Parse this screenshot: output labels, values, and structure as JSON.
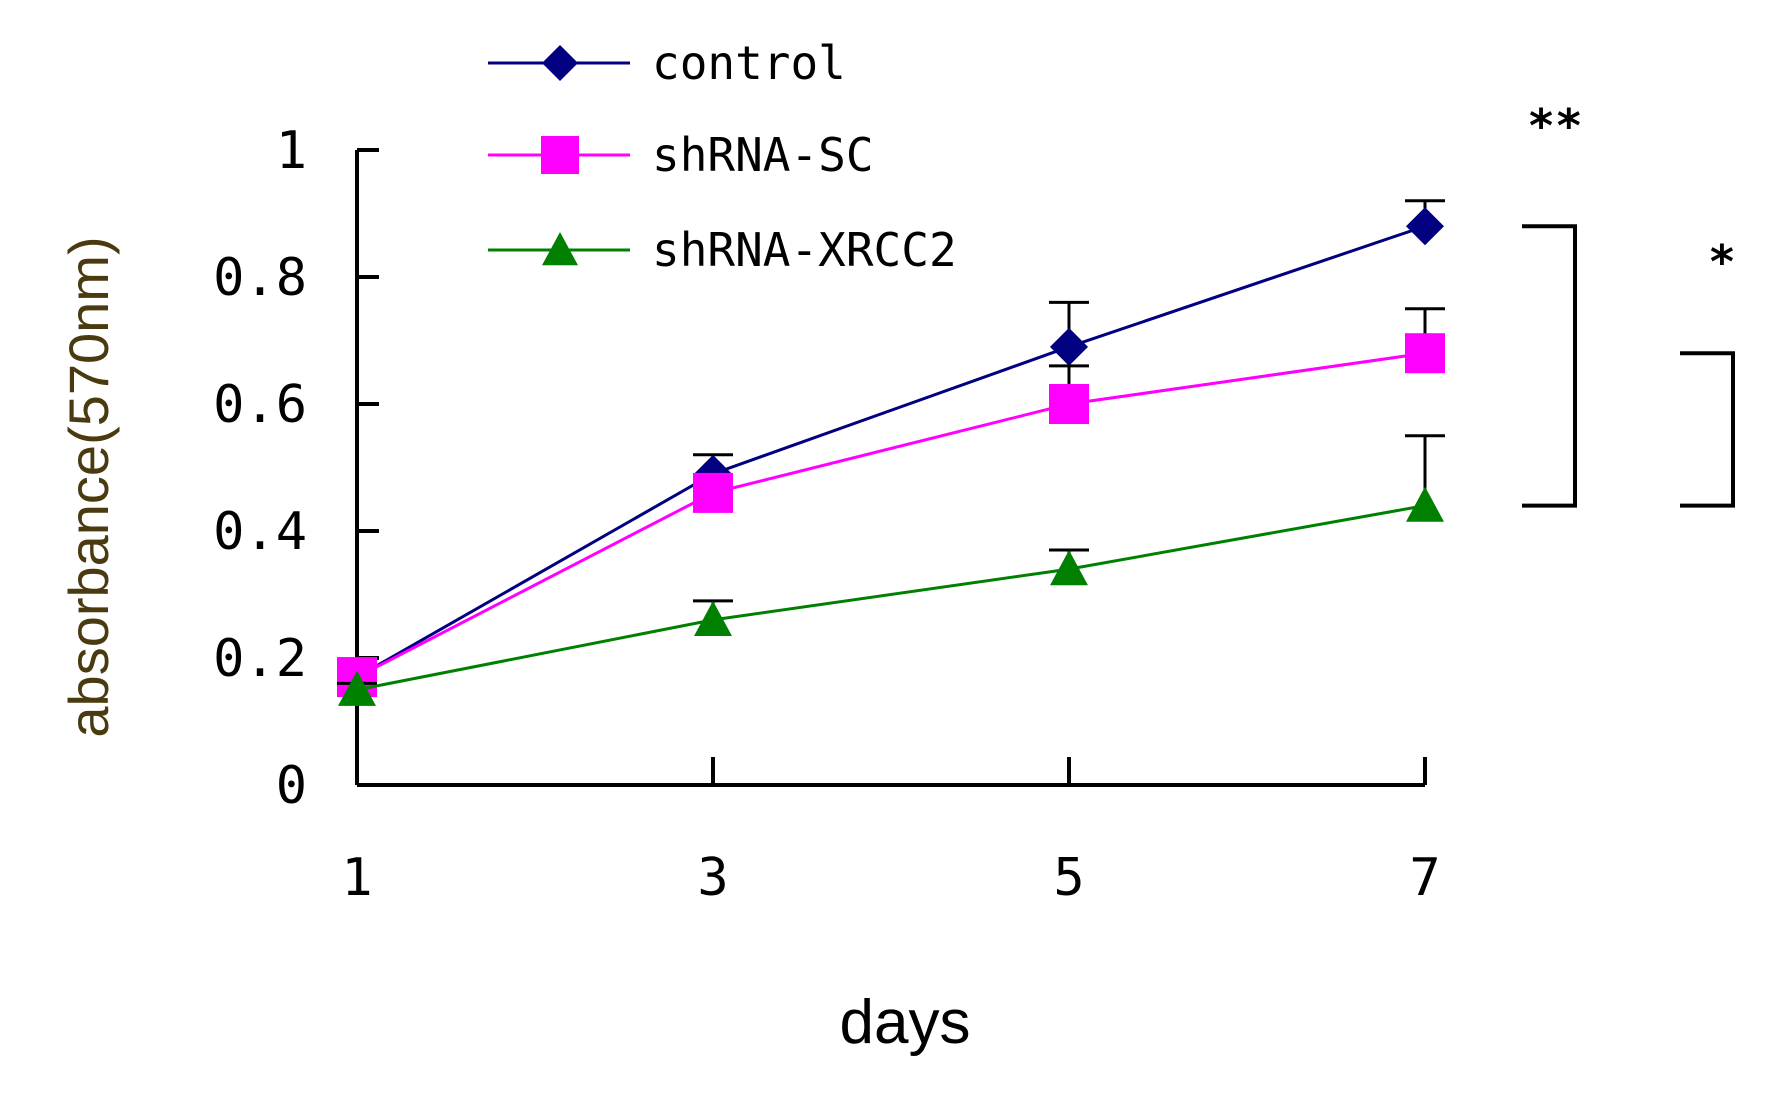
{
  "chart_data": {
    "type": "line",
    "title": "",
    "xlabel": "days",
    "ylabel": "absorbance(570nm)",
    "x": [
      1,
      3,
      5,
      7
    ],
    "x_ticks": [
      "1",
      "3",
      "5",
      "7"
    ],
    "ylim": [
      0,
      1
    ],
    "y_ticks": [
      "0",
      "0.2",
      "0.4",
      "0.6",
      "0.8",
      "1"
    ],
    "y_tick_values": [
      0,
      0.2,
      0.4,
      0.6,
      0.8,
      1
    ],
    "grid": false,
    "legend_position": "top-left",
    "series": [
      {
        "name": "control",
        "marker": "diamond",
        "color": "#000080",
        "values": [
          0.17,
          0.49,
          0.69,
          0.88
        ],
        "errors": [
          0.02,
          0.03,
          0.07,
          0.04
        ]
      },
      {
        "name": "shRNA-SC",
        "marker": "square",
        "color": "#ff00ff",
        "values": [
          0.17,
          0.46,
          0.6,
          0.68
        ],
        "errors": [
          0.02,
          0.02,
          0.06,
          0.07
        ]
      },
      {
        "name": "shRNA-XRCC2",
        "marker": "triangle",
        "color": "#008000",
        "values": [
          0.15,
          0.26,
          0.34,
          0.44
        ],
        "errors": [
          0.01,
          0.03,
          0.03,
          0.11
        ]
      }
    ],
    "annotations": [
      {
        "label": "**",
        "from": "control",
        "to": "shRNA-XRCC2"
      },
      {
        "label": "*",
        "from": "shRNA-SC",
        "to": "shRNA-XRCC2"
      }
    ]
  }
}
